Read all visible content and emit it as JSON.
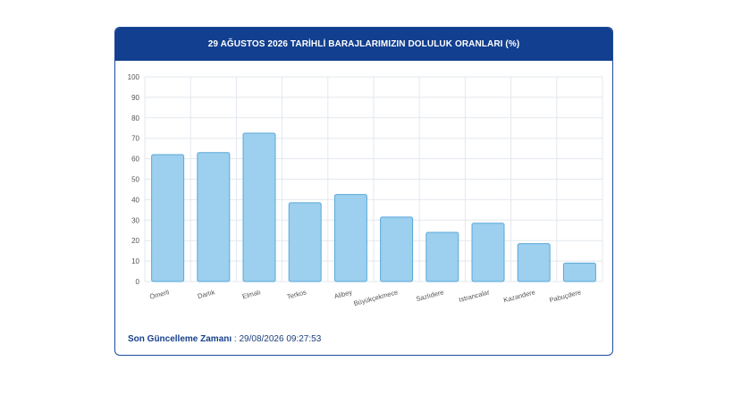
{
  "header": {
    "title": "29 AĞUSTOS 2026 TARİHLİ BARAJLARIMIZIN DOLULUK ORANLARI (%)"
  },
  "footer": {
    "label": "Son Güncelleme Zamanı",
    "separator": " : ",
    "value": "29/08/2026 09:27:53"
  },
  "chart_data": {
    "type": "bar",
    "title": "29 AĞUSTOS 2026 TARİHLİ BARAJLARIMIZIN DOLULUK ORANLARI (%)",
    "categories": [
      "Ömerli",
      "Darlık",
      "Elmalı",
      "Terkos",
      "Alibey",
      "Büyükçekmece",
      "Sazlıdere",
      "Istrancalar",
      "Kazandere",
      "Pabuçdere"
    ],
    "values": [
      62,
      63,
      72.5,
      38.5,
      42.5,
      31.5,
      24,
      28.5,
      18.5,
      9
    ],
    "ylim": [
      0,
      100
    ],
    "yticks": [
      0,
      10,
      20,
      30,
      40,
      50,
      60,
      70,
      80,
      90,
      100
    ],
    "grid": true,
    "colors": {
      "bar_fill": "#9dcfee",
      "bar_stroke": "#5aa9d9",
      "grid": "#e3e8ee",
      "tick_text": "#555555",
      "header_bg": "#123f8f"
    }
  }
}
